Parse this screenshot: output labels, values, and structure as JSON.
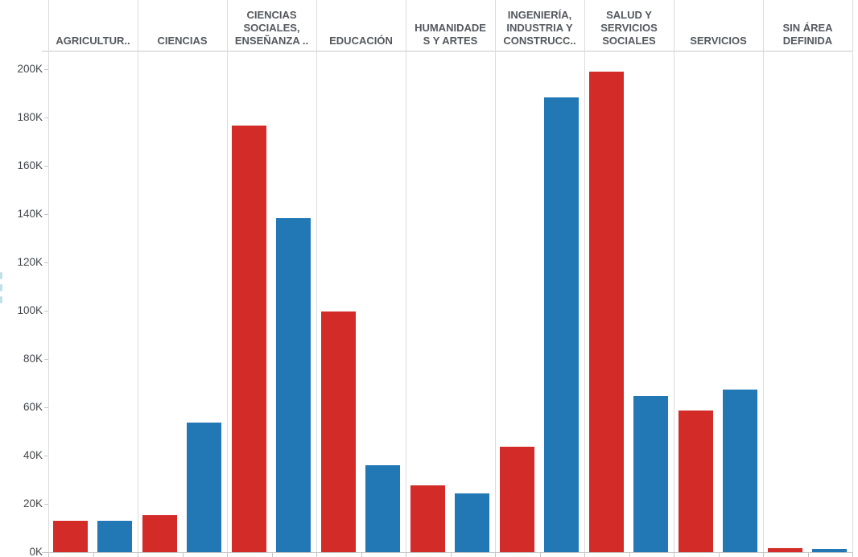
{
  "chart_data": {
    "type": "bar",
    "title": "",
    "categories": [
      {
        "id": "agricultura",
        "label": "AGRICULTUR.."
      },
      {
        "id": "ciencias",
        "label": "CIENCIAS"
      },
      {
        "id": "ciencias-sociales",
        "label": "CIENCIAS\nSOCIALES,\nENSEÑANZA .."
      },
      {
        "id": "educacion",
        "label": "EDUCACIÓN"
      },
      {
        "id": "humanidades",
        "label": "HUMANIDADE\nS Y ARTES"
      },
      {
        "id": "ingenieria",
        "label": "INGENIERÍA,\nINDUSTRIA Y\nCONSTRUCC.."
      },
      {
        "id": "salud",
        "label": "SALUD Y\nSERVICIOS\nSOCIALES"
      },
      {
        "id": "servicios",
        "label": "SERVICIOS"
      },
      {
        "id": "sin-area",
        "label": "SIN ÁREA\nDEFINIDA"
      }
    ],
    "series": [
      {
        "name": "red",
        "color": "#d32b28",
        "values": [
          13100,
          15400,
          176500,
          99800,
          27500,
          43500,
          198900,
          58800,
          1500
        ]
      },
      {
        "name": "blue",
        "color": "#2178b4",
        "values": [
          12900,
          53500,
          138200,
          36000,
          24200,
          188200,
          64800,
          67200,
          1200
        ]
      }
    ],
    "y_axis": {
      "min": 0,
      "max": 200000,
      "tick_step": 20000,
      "tick_labels": [
        "0K",
        "20K",
        "40K",
        "60K",
        "80K",
        "100K",
        "120K",
        "140K",
        "160K",
        "180K",
        "200K"
      ]
    },
    "xlabel": "",
    "ylabel": "",
    "legend": "none",
    "grid": {
      "horizontal": false,
      "vertical_column_dividers": true
    }
  },
  "colors": {
    "bar_red": "#d32b28",
    "bar_blue": "#2178b4",
    "header_text": "#54585e",
    "axis_text": "#42464c",
    "divider": "#dcdcdc",
    "axis_line": "#c6c6c6",
    "background": "#ffffff"
  }
}
